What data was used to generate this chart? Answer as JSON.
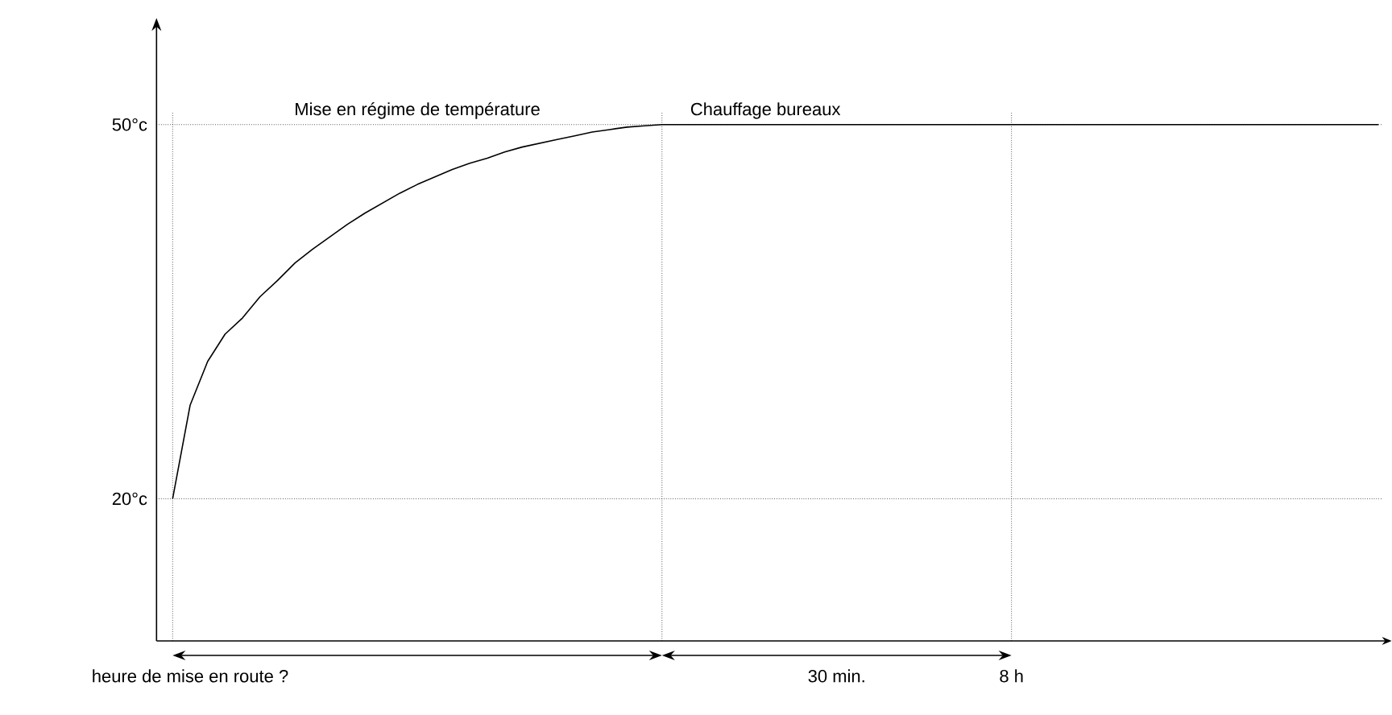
{
  "chart_data": {
    "type": "line",
    "color": "#000000",
    "categories": [
      null,
      "heure de mise en route ?",
      null,
      null,
      null,
      null,
      null,
      null,
      null,
      null,
      null,
      null,
      null,
      null,
      null,
      null,
      null,
      null,
      null,
      null,
      null,
      null,
      null,
      null,
      null,
      null,
      null,
      null,
      null,
      null,
      null,
      null,
      null,
      null,
      null,
      null,
      null,
      null,
      "30 min.",
      null,
      null,
      null,
      null,
      null,
      null,
      null,
      null,
      null,
      "8 h",
      null,
      null,
      null,
      null,
      null,
      null,
      null,
      null,
      null,
      null,
      null,
      null,
      null,
      null,
      null,
      null,
      null,
      null,
      null,
      null,
      null
    ],
    "values": [
      20,
      27.5,
      31,
      33.2,
      34.5,
      36.2,
      37.5,
      38.9,
      40,
      41,
      42,
      42.9,
      43.7,
      44.5,
      45.2,
      45.8,
      46.4,
      46.9,
      47.3,
      47.8,
      48.2,
      48.5,
      48.8,
      49.1,
      49.4,
      49.6,
      49.8,
      49.9,
      50,
      50,
      50,
      50,
      50,
      50,
      50,
      50,
      50,
      50,
      50,
      50,
      50,
      50,
      50,
      50,
      50,
      50,
      50,
      50,
      50,
      50,
      50,
      50,
      50,
      50,
      50,
      50,
      50,
      50,
      50,
      50,
      50,
      50,
      50,
      50,
      50,
      50,
      50,
      50,
      50,
      50
    ],
    "ylim": [
      8.6,
      57.9
    ],
    "yticks": [
      {
        "value": 20,
        "label": "20°c"
      },
      {
        "value": 50,
        "label": "50°c"
      }
    ],
    "grid": true,
    "marker": "none",
    "line_style": "solid",
    "annotations": [
      "Mise en régime de température",
      "Chauffage bureaux"
    ]
  }
}
